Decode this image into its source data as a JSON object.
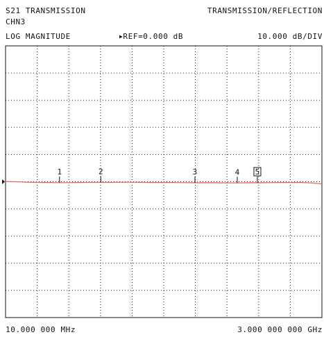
{
  "header": {
    "parameter": "S21 TRANSMISSION",
    "mode": "TRANSMISSION/REFLECTION",
    "channel": "CHN3",
    "format": "LOG MAGNITUDE",
    "reference": "REF=0.000 dB",
    "scale": "10.000 dB/DIV"
  },
  "footer": {
    "start": "10.000 000 MHz",
    "stop": "3.000 000 000 GHz"
  },
  "colors": {
    "trace": "#e8675c",
    "grid": "#222222",
    "frame": "#111111",
    "text": "#111111"
  },
  "chart_data": {
    "type": "line",
    "title": "S21 TRANSMISSION",
    "xlabel": "",
    "ylabel": "",
    "x_unit": "MHz",
    "xlim": [
      10,
      3000
    ],
    "y_unit": "dB",
    "ylim": [
      -50,
      50
    ],
    "reference_level": 0,
    "grid": true,
    "divisions": {
      "x": 10,
      "y": 10
    },
    "series": [
      {
        "x": [
          10,
          100,
          200,
          300,
          400,
          500,
          600,
          700,
          800,
          900,
          1000,
          1100,
          1200,
          1300,
          1400,
          1500,
          1600,
          1700,
          1800,
          1900,
          2000,
          2100,
          2200,
          2300,
          2400,
          2500,
          2600,
          2700,
          2800,
          2900,
          3000
        ],
        "y": [
          0.05,
          0.0,
          -0.15,
          -0.25,
          -0.3,
          -0.35,
          -0.35,
          -0.3,
          -0.25,
          -0.25,
          -0.25,
          -0.2,
          -0.2,
          -0.25,
          -0.3,
          -0.3,
          -0.3,
          -0.35,
          -0.4,
          -0.4,
          -0.4,
          -0.45,
          -0.45,
          -0.4,
          -0.4,
          -0.35,
          -0.3,
          -0.3,
          -0.3,
          -0.45,
          -0.8
        ]
      }
    ],
    "markers": [
      {
        "label": "1",
        "x": 520,
        "active": false
      },
      {
        "label": "2",
        "x": 910,
        "active": false
      },
      {
        "label": "3",
        "x": 1800,
        "active": false
      },
      {
        "label": "4",
        "x": 2200,
        "active": false
      },
      {
        "label": "5",
        "x": 2390,
        "active": true
      }
    ]
  }
}
